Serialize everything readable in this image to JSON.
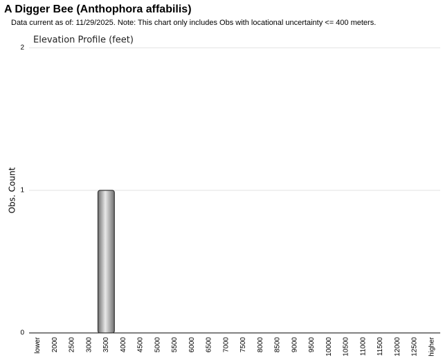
{
  "chart_data": {
    "type": "bar",
    "title": "A Digger Bee   (Anthophora affabilis)",
    "subtitle": "Data current as of: 11/29/2025.    Note: This chart only includes Obs with locational uncertainty <= 400 meters.",
    "chart_title": "Elevation Profile (feet)",
    "y_label": "Obs. Count",
    "categories": [
      "lower",
      "2000",
      "2500",
      "3000",
      "3500",
      "4000",
      "4500",
      "5000",
      "5500",
      "6000",
      "6500",
      "7000",
      "7500",
      "8000",
      "8500",
      "9000",
      "9500",
      "10000",
      "10500",
      "11000",
      "11500",
      "12000",
      "12500",
      "higher"
    ],
    "values": [
      0,
      0,
      0,
      0,
      1,
      0,
      0,
      0,
      0,
      0,
      0,
      0,
      0,
      0,
      0,
      0,
      0,
      0,
      0,
      0,
      0,
      0,
      0,
      0
    ],
    "color": "#e8e8e8",
    "ylim": [
      0,
      2
    ],
    "yticks": [
      0,
      1,
      2
    ],
    "grid": true
  }
}
